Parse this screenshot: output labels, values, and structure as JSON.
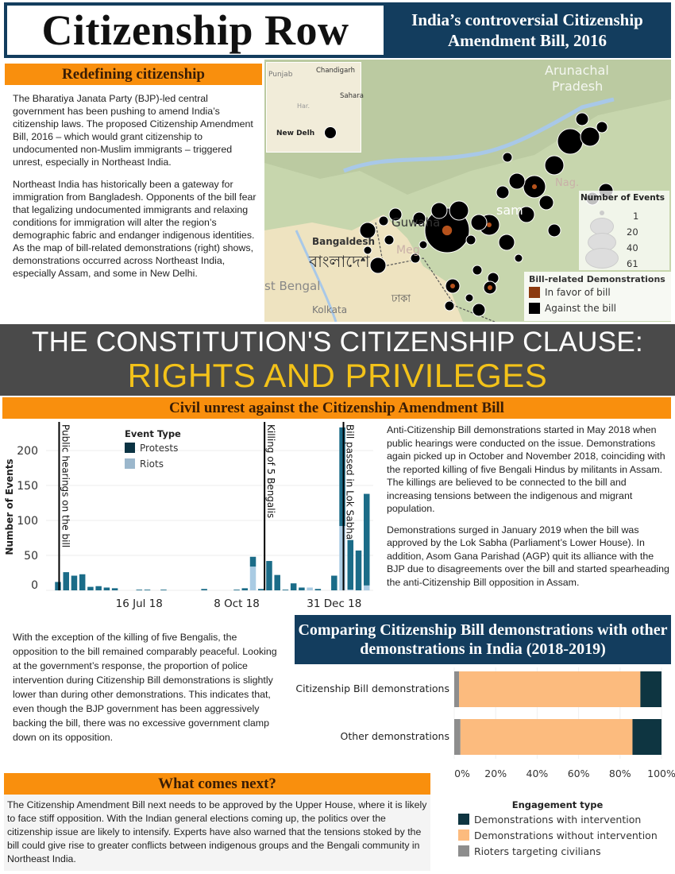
{
  "header": {
    "title": "Citizenship Row",
    "subtitle": "India’s controversial Citizenship Amendment Bill, 2016"
  },
  "overlay": {
    "line1": "THE CONSTITUTION'S CITIZENSHIP CLAUSE:",
    "line2": "RIGHTS AND PRIVILEGES"
  },
  "sections": {
    "redefining": {
      "title": "Redefining citizenship",
      "paragraphs": [
        "The Bharatiya Janata Party (BJP)-led central government has been pushing to amend India’s citizenship laws. The proposed Citizenship Amendment Bill, 2016 – which would grant citizenship to undocumented non-Muslim immigrants – triggered unrest, especially in Northeast India.",
        "Northeast India has historically been a gateway for immigration from Bangladesh. Opponents of the bill fear that legalizing undocumented immigrants and relaxing conditions for immigration will alter the region’s demographic fabric and endanger indigenous identities. As the map of bill-related demonstrations (right) shows, demonstrations occurred across Northeast India, especially Assam, and some in New Delhi."
      ]
    },
    "unrest": {
      "title": "Civil unrest against the Citizenship Amendment Bill",
      "paragraphs": [
        "Anti-Citizenship Bill demonstrations started in May 2018 when public hearings were conducted on the issue. Demonstrations again picked up in October and November 2018, coinciding with the reported killing of five Bengali Hindus by militants in Assam. The killings are believed to be connected to the bill and increasing tensions between the indigenous and migrant population.",
        "Demonstrations surged in January 2019 when the bill was approved by the Lok Sabha (Parliament’s Lower House). In addition, Asom Gana Parishad (AGP) quit its alliance with the BJP due to disagreements over the bill and started spearheading the anti-Citizenship Bill opposition in Assam."
      ]
    },
    "response": {
      "paragraph": "With the exception of the killing of five Bengalis, the opposition to the bill remained comparably peaceful. Looking at the government’s response, the proportion of police intervention during Citizenship Bill demonstrations is slightly lower than during other demonstrations. This indicates that, even though the BJP government has been aggressively backing the bill, there was no excessive government clamp down on its opposition."
    },
    "next": {
      "title": "What comes next?",
      "paragraph": "The Citizenship Amendment Bill next needs to be approved by the Upper House, where it is likely to face stiff opposition. With the Indian general elections coming up, the politics over the citizenship issue are likely to intensify. Experts have also warned that the tensions stoked by the bill could give rise to greater conflicts between indigenous groups and the Bengali community in Northeast India."
    }
  },
  "map": {
    "labels": {
      "punjab": "Punjab",
      "chandigarh": "Chandigarh",
      "sahara": "Sahara",
      "har": "Har.",
      "new_delhi": "New Delh",
      "arunachal": "Arunachal",
      "pradesh": "Pradesh",
      "assam": "sam",
      "guwahati": "Guwaha",
      "nag": "Nag.",
      "meg": "Meg",
      "bangladesh": "Bangaldesh",
      "bangladesh_bn": "বাংলাদেশ",
      "west_bengal": "st Bengal",
      "dhaka_bn": "ঢাকা",
      "kolkata": "Kolkata"
    },
    "size_legend": {
      "title": "Number of Events",
      "values": [
        "1",
        "20",
        "40",
        "61"
      ]
    },
    "color_legend": {
      "title": "Bill-related Demonstrations",
      "items": [
        {
          "label": "In favor of bill",
          "color": "#8b3a0e"
        },
        {
          "label": "Against the bill",
          "color": "#000000"
        }
      ]
    }
  },
  "chart_data": [
    {
      "type": "bar",
      "stacked": true,
      "ylabel": "Number of Events",
      "xlabel": "",
      "ylim": [
        0,
        235
      ],
      "yticks": [
        0,
        50,
        100,
        150,
        200
      ],
      "xtick_labels": [
        "16 Jul 18",
        "8 Oct 18",
        "31 Dec 18"
      ],
      "xtick_dates": [
        "2018-07-16",
        "2018-10-08",
        "2018-12-31"
      ],
      "x_interval": "week",
      "x_start": "2018-05-07",
      "legend": {
        "title": "Event Type",
        "placement": "top-left"
      },
      "series": [
        {
          "name": "Protests",
          "color": "#1b6c88",
          "values": [
            12,
            26,
            21,
            23,
            5,
            6,
            4,
            3,
            0,
            0,
            1,
            1,
            0,
            1,
            0,
            0,
            0,
            0,
            2,
            0,
            0,
            0,
            1,
            3,
            14,
            2,
            42,
            22,
            1,
            10,
            4,
            0,
            2,
            0,
            21,
            141,
            71,
            57,
            131
          ]
        },
        {
          "name": "Riots",
          "color": "#a9cbe3",
          "values": [
            0,
            0,
            0,
            0,
            0,
            0,
            0,
            0,
            0,
            0,
            0,
            0,
            0,
            0,
            0,
            0,
            0,
            0,
            0,
            0,
            0,
            0,
            0,
            0,
            34,
            0,
            0,
            0,
            0,
            0,
            0,
            4,
            0,
            0,
            0,
            92,
            1,
            0,
            7
          ]
        }
      ],
      "legend_colors": {
        "Protests": "#0b3343",
        "Riots": "#9bb7cc"
      },
      "annotations": [
        {
          "date": "2018-05-08",
          "label": "Public hearings on the bill"
        },
        {
          "date": "2018-11-01",
          "label": "Killing of 5 Bengalis"
        },
        {
          "date": "2019-01-08",
          "label": "Bill passed in Lok Sabha"
        }
      ],
      "grid": true
    },
    {
      "type": "bar",
      "orientation": "horizontal",
      "stacked": true,
      "normalized": true,
      "title": "Comparing Citizenship Bill demonstrations with other demonstrations in India (2018-2019)",
      "categories": [
        "Citizenship Bill demonstrations",
        "Other demonstrations"
      ],
      "xtick_labels": [
        "0%",
        "20%",
        "40%",
        "60%",
        "80%",
        "100%"
      ],
      "xlim": [
        0,
        100
      ],
      "legend": {
        "title": "Engagement type",
        "placement": "bottom"
      },
      "series": [
        {
          "name": "Rioters targeting civilians",
          "color": "#8d8d8d",
          "values": [
            2.3,
            3
          ]
        },
        {
          "name": "Demonstrations without intervention",
          "color": "#fcbb7e",
          "values": [
            87.5,
            83
          ]
        },
        {
          "name": "Demonstrations with intervention",
          "color": "#0e3541",
          "values": [
            10.2,
            14
          ]
        }
      ],
      "legend_order": [
        "Demonstrations with intervention",
        "Demonstrations without intervention",
        "Rioters targeting civilians"
      ]
    }
  ]
}
